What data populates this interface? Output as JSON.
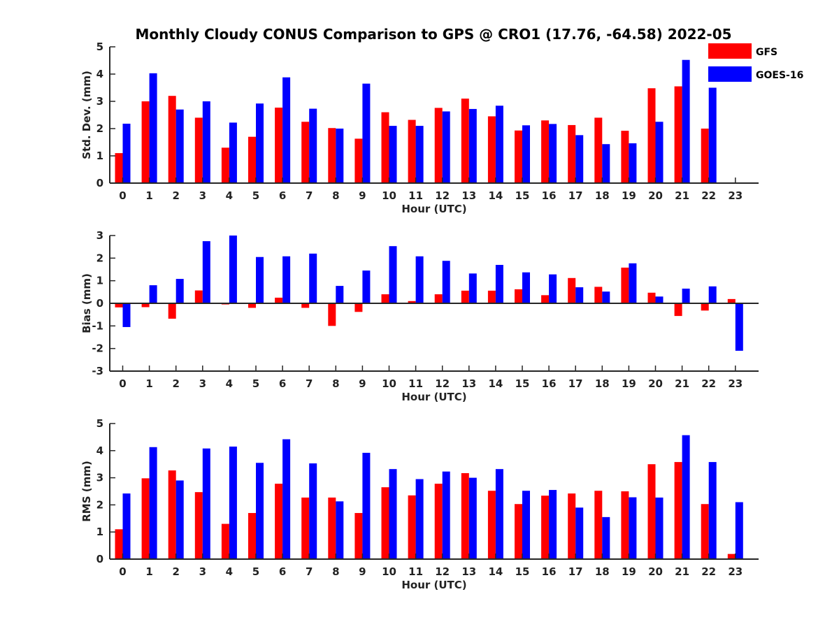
{
  "colors": {
    "gfs": "#ff0000",
    "goes": "#0000ff",
    "axis": "#262626"
  },
  "chart_data": {
    "type": "bar",
    "title": "Monthly Cloudy CONUS Comparison to GPS @ CRO1 (17.76, -64.58) 2022-05",
    "legend": {
      "position": "top-right",
      "entries": [
        "GFS",
        "GOES-16"
      ]
    },
    "categories": [
      "0",
      "1",
      "2",
      "3",
      "4",
      "5",
      "6",
      "7",
      "8",
      "9",
      "10",
      "11",
      "12",
      "13",
      "14",
      "15",
      "16",
      "17",
      "18",
      "19",
      "20",
      "21",
      "22",
      "23"
    ],
    "panels": [
      {
        "xlabel": "Hour (UTC)",
        "ylabel": "Std. Dev. (mm)",
        "ylim": [
          0,
          5
        ],
        "yticks": [
          "0",
          "1",
          "2",
          "3",
          "4",
          "5"
        ],
        "series": [
          {
            "name": "GFS",
            "values": [
              1.1,
              3.0,
              3.2,
              2.4,
              1.3,
              1.7,
              2.77,
              2.25,
              2.02,
              1.63,
              2.6,
              2.32,
              2.76,
              3.1,
              2.45,
              1.93,
              2.3,
              2.13,
              2.4,
              1.92,
              3.48,
              3.55,
              2.0,
              null
            ]
          },
          {
            "name": "GOES-16",
            "values": [
              2.18,
              4.03,
              2.7,
              3.0,
              2.22,
              2.92,
              3.88,
              2.73,
              2.0,
              3.65,
              2.1,
              2.1,
              2.63,
              2.72,
              2.84,
              2.12,
              2.17,
              1.76,
              1.43,
              1.46,
              2.25,
              4.52,
              3.5,
              null
            ]
          }
        ]
      },
      {
        "xlabel": "Hour (UTC)",
        "ylabel": "Bias (mm)",
        "ylim": [
          -3,
          3
        ],
        "yticks": [
          "-3",
          "-2",
          "-1",
          "0",
          "1",
          "2",
          "3"
        ],
        "series": [
          {
            "name": "GFS",
            "values": [
              -0.18,
              -0.17,
              -0.68,
              0.57,
              -0.05,
              -0.2,
              0.25,
              -0.2,
              -1.0,
              -0.38,
              0.4,
              0.1,
              0.4,
              0.56,
              0.56,
              0.62,
              0.36,
              1.12,
              0.73,
              1.58,
              0.47,
              -0.56,
              -0.32,
              0.19
            ]
          },
          {
            "name": "GOES-16",
            "values": [
              -1.05,
              0.8,
              1.08,
              2.75,
              3.0,
              2.05,
              2.08,
              2.2,
              0.77,
              1.45,
              2.53,
              2.08,
              1.88,
              1.32,
              1.7,
              1.37,
              1.28,
              0.71,
              0.52,
              1.77,
              0.3,
              0.65,
              0.75,
              -2.1
            ]
          }
        ]
      },
      {
        "xlabel": "Hour (UTC)",
        "ylabel": "RMS (mm)",
        "ylim": [
          0,
          5
        ],
        "yticks": [
          "0",
          "1",
          "2",
          "3",
          "4",
          "5"
        ],
        "series": [
          {
            "name": "GFS",
            "values": [
              1.1,
              2.98,
              3.27,
              2.47,
              1.3,
              1.7,
              2.78,
              2.27,
              2.27,
              1.7,
              2.65,
              2.35,
              2.78,
              3.17,
              2.52,
              2.03,
              2.34,
              2.42,
              2.52,
              2.5,
              3.5,
              3.58,
              2.03,
              0.19
            ]
          },
          {
            "name": "GOES-16",
            "values": [
              2.42,
              4.13,
              2.9,
              4.08,
              4.15,
              3.55,
              4.42,
              3.53,
              2.13,
              3.92,
              3.32,
              2.95,
              3.23,
              3.0,
              3.32,
              2.52,
              2.55,
              1.9,
              1.55,
              2.28,
              2.27,
              4.57,
              3.58,
              2.1
            ]
          }
        ]
      }
    ]
  }
}
